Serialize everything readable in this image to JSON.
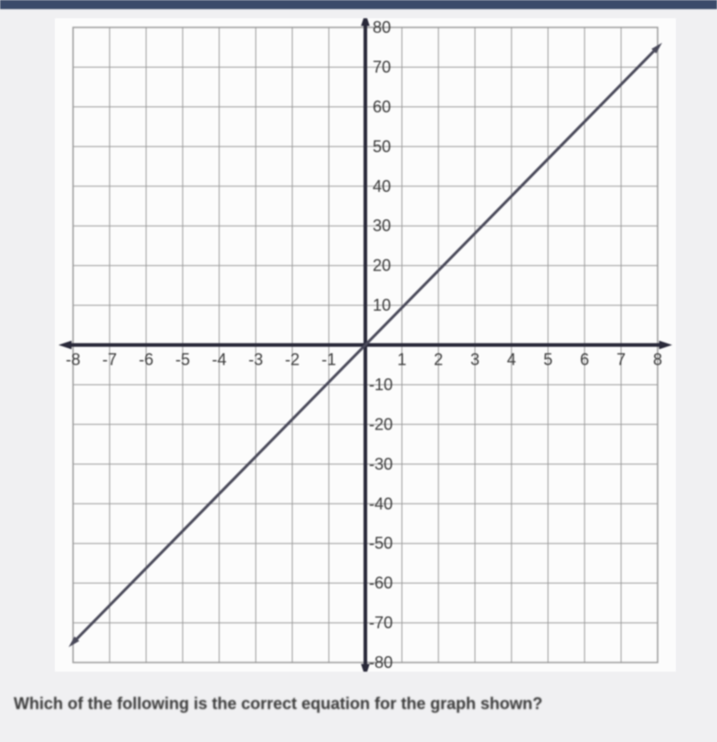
{
  "chart": {
    "type": "line",
    "xlim": [
      -8,
      8
    ],
    "ylim": [
      -80,
      80
    ],
    "xtick_step": 1,
    "ytick_step": 10,
    "xticks": [
      -8,
      -7,
      -6,
      -5,
      -4,
      -3,
      -2,
      -1,
      1,
      2,
      3,
      4,
      5,
      6,
      7,
      8
    ],
    "yticks_pos": [
      10,
      20,
      30,
      40,
      50,
      60,
      70,
      80
    ],
    "yticks_neg": [
      -10,
      -20,
      -30,
      -40,
      -50,
      -60,
      -70,
      -80
    ],
    "line_points": [
      [
        -8,
        -75
      ],
      [
        8,
        75
      ]
    ],
    "grid_color": "#9a9a9a",
    "axis_color": "#2a2a3a",
    "line_color": "#4a4a5a",
    "background_color": "#fcfcfc",
    "tick_fontsize": 18,
    "tick_color": "#3a3a3a",
    "arrow_size": 8,
    "line_width": 3,
    "axis_width": 4,
    "grid_width": 1
  },
  "question": {
    "text": "Which of the following is the correct equation for the graph shown?"
  }
}
